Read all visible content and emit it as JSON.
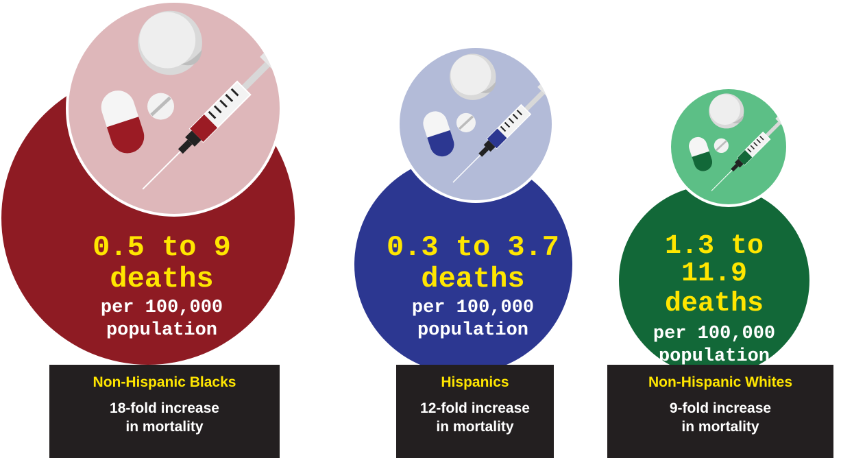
{
  "groups": [
    {
      "id": "non-hispanic-blacks",
      "rate_range": "0.5 to 9",
      "rate_unit": "deaths",
      "per": "per 100,000",
      "population": "population",
      "group_name": "Non-Hispanic Blacks",
      "increase_line1": "18-fold increase",
      "increase_line2": "in mortality",
      "colors": {
        "main": "#8e1b23",
        "light": "#deb7ba",
        "accent": "#9b1b24"
      }
    },
    {
      "id": "hispanics",
      "rate_range": "0.3 to 3.7",
      "rate_unit": "deaths",
      "per": "per 100,000",
      "population": "population",
      "group_name": "Hispanics",
      "increase_line1": "12-fold increase",
      "increase_line2": "in mortality",
      "colors": {
        "main": "#2c3791",
        "light": "#b3bbd8",
        "accent": "#2c3791"
      }
    },
    {
      "id": "non-hispanic-whites",
      "rate_range": "1.3 to 11.9",
      "rate_unit": "deaths",
      "per": "per 100,000",
      "population": "population",
      "group_name": "Non-Hispanic Whites",
      "increase_line1": "9-fold increase",
      "increase_line2": "in mortality",
      "colors": {
        "main": "#126838",
        "light": "#5cbf86",
        "accent": "#126838"
      }
    }
  ],
  "icons": [
    "pill-icon",
    "tablet-icon",
    "capsule-icon",
    "syringe-icon"
  ]
}
